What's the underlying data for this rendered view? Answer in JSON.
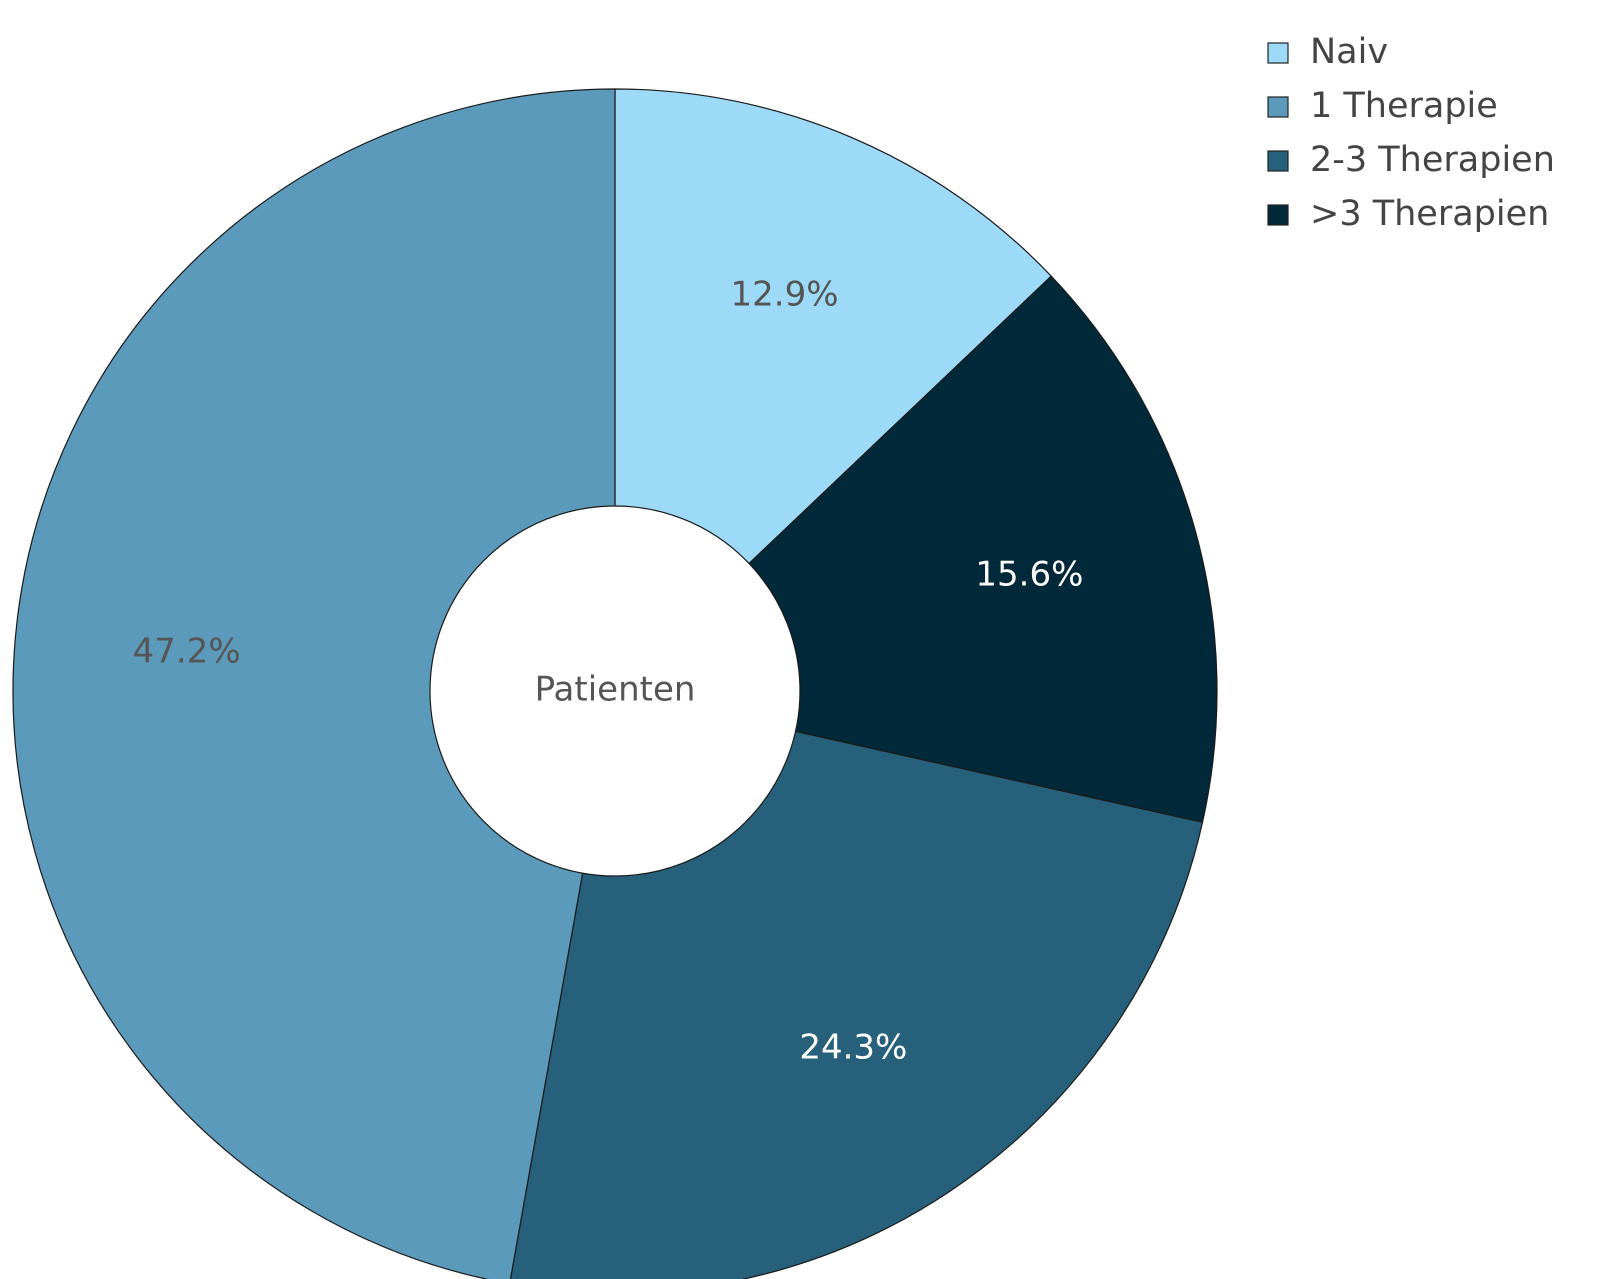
{
  "chart_data": {
    "type": "pie",
    "hole": true,
    "center_label": "Patienten",
    "slices": [
      {
        "name": "Naiv",
        "value": 12.9,
        "label": "12.9%",
        "color": "#9cdaf7",
        "label_color": "#555555"
      },
      {
        "name": ">3 Therapien",
        "value": 15.6,
        "label": "15.6%",
        "color": "#02293a",
        "label_color": "#ffffff"
      },
      {
        "name": "2-3 Therapien",
        "value": 24.3,
        "label": "24.3%",
        "color": "#26607a",
        "label_color": "#ffffff"
      },
      {
        "name": "1 Therapie",
        "value": 47.2,
        "label": "47.2%",
        "color": "#5b9aba",
        "label_color": "#555555"
      }
    ],
    "legend": {
      "placement": "top-right",
      "items": [
        {
          "name": "Naiv",
          "color": "#9cdaf7"
        },
        {
          "name": "1 Therapie",
          "color": "#5b9aba"
        },
        {
          "name": "2-3 Therapien",
          "color": "#26607a"
        },
        {
          "name": ">3 Therapien",
          "color": "#02293a"
        }
      ]
    },
    "direction": "clockwise",
    "start": "top"
  }
}
